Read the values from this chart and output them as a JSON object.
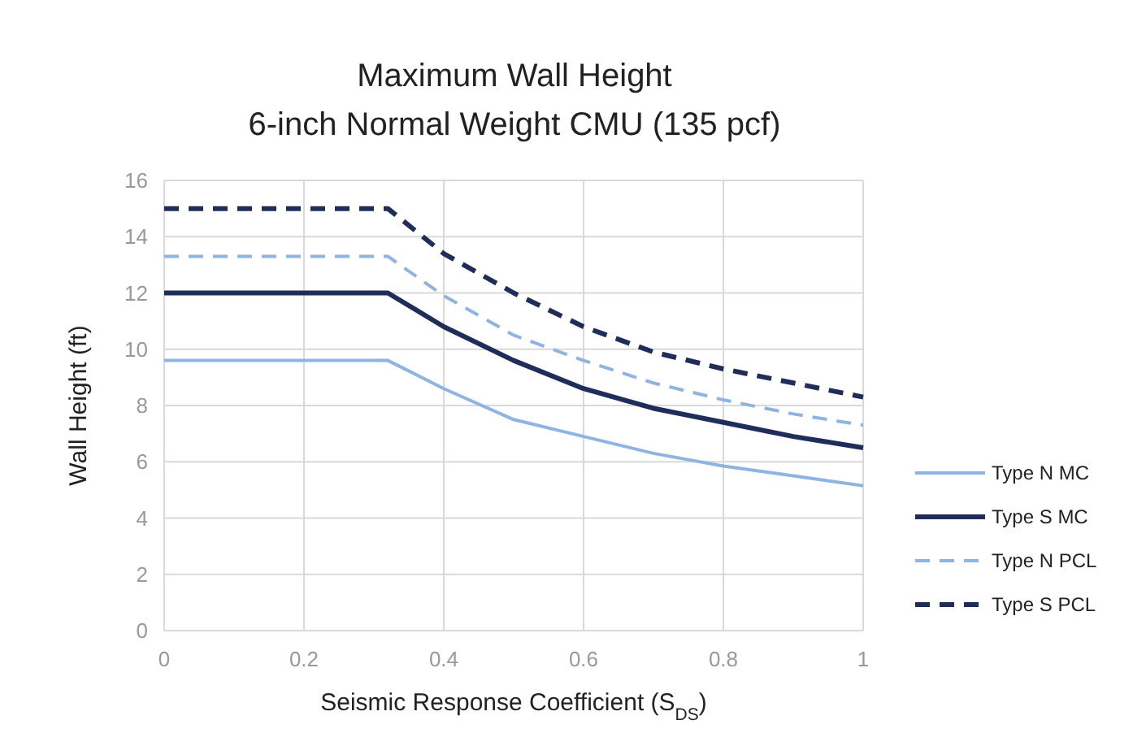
{
  "chart_data": {
    "type": "line",
    "title": "Maximum Wall Height",
    "subtitle": "6-inch Normal Weight CMU (135 pcf)",
    "xlabel": "Seismic Response Coefficient (S$_{DS}$)",
    "ylabel": "Wall Height (ft)",
    "x": [
      0,
      0.32,
      0.4,
      0.5,
      0.6,
      0.7,
      0.8,
      0.9,
      1
    ],
    "series": [
      {
        "name": "Type N MC",
        "color": "#8eb4e3",
        "line_style": "solid",
        "values": [
          9.6,
          9.6,
          8.6,
          7.5,
          6.9,
          6.3,
          5.85,
          5.5,
          5.15
        ]
      },
      {
        "name": "Type S MC",
        "color": "#1f2d5a",
        "line_style": "solid",
        "values": [
          12,
          12,
          10.8,
          9.6,
          8.6,
          7.9,
          7.4,
          6.9,
          6.5
        ]
      },
      {
        "name": "Type N PCL",
        "color": "#8eb4e3",
        "line_style": "dashed",
        "values": [
          13.3,
          13.3,
          11.9,
          10.5,
          9.6,
          8.8,
          8.2,
          7.7,
          7.3
        ]
      },
      {
        "name": "Type S PCL",
        "color": "#1f2d5a",
        "line_style": "dashed",
        "values": [
          15,
          15,
          13.4,
          12,
          10.8,
          9.9,
          9.3,
          8.8,
          8.3
        ]
      }
    ],
    "xlim": [
      0,
      1
    ],
    "xticks": [
      0,
      0.2,
      0.4,
      0.6,
      0.8,
      1
    ],
    "ylim": [
      0,
      16
    ],
    "yticks": [
      0,
      2,
      4,
      6,
      8,
      10,
      12,
      14,
      16
    ],
    "grid": true,
    "legend": "right"
  }
}
